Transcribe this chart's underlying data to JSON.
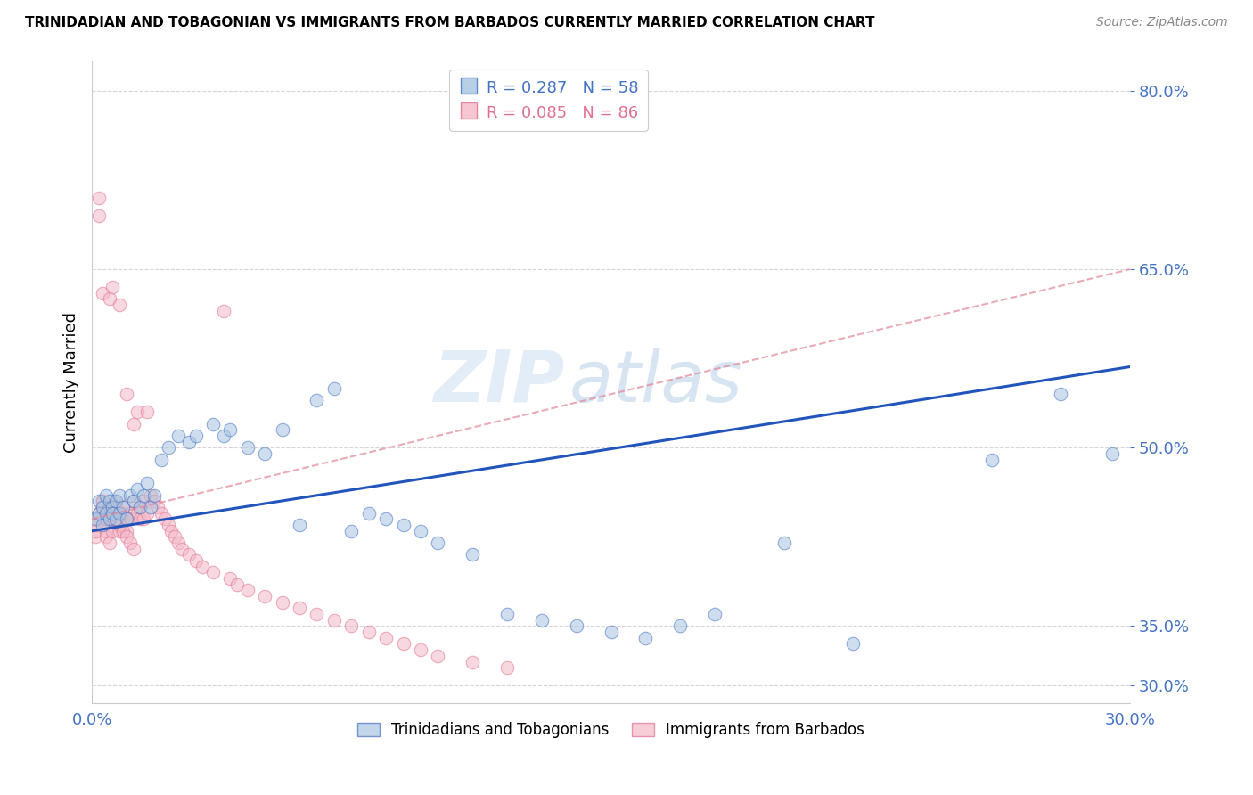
{
  "title": "TRINIDADIAN AND TOBAGONIAN VS IMMIGRANTS FROM BARBADOS CURRENTLY MARRIED CORRELATION CHART",
  "source": "Source: ZipAtlas.com",
  "xlabel": "",
  "ylabel": "Currently Married",
  "watermark_zip": "ZIP",
  "watermark_atlas": "atlas",
  "legend_blue_r": "R = 0.287",
  "legend_blue_n": "N = 58",
  "legend_pink_r": "R = 0.085",
  "legend_pink_n": "N = 86",
  "legend_blue_label": "Trinidadians and Tobagonians",
  "legend_pink_label": "Immigrants from Barbados",
  "xlim": [
    0.0,
    0.3
  ],
  "ylim": [
    0.285,
    0.825
  ],
  "yticks": [
    0.3,
    0.35,
    0.5,
    0.65,
    0.8
  ],
  "xticks": [
    0.0,
    0.05,
    0.1,
    0.15,
    0.2,
    0.25,
    0.3
  ],
  "ytick_labels": [
    "30.0%",
    "35.0%",
    "50.0%",
    "65.0%",
    "80.0%"
  ],
  "blue_fill": "#a8c4e0",
  "pink_fill": "#f4b8c8",
  "blue_edge": "#4472c4",
  "pink_edge": "#e07090",
  "blue_line_color": "#2255bb",
  "pink_line_color": "#e08898",
  "background_color": "#ffffff",
  "blue_trend_x0": 0.0,
  "blue_trend_y0": 0.43,
  "blue_trend_x1": 0.3,
  "blue_trend_y1": 0.568,
  "pink_trend_x0": 0.0,
  "pink_trend_y0": 0.44,
  "pink_trend_x1": 0.3,
  "pink_trend_y1": 0.65,
  "blue_dots_x": [
    0.001,
    0.002,
    0.002,
    0.003,
    0.003,
    0.004,
    0.004,
    0.005,
    0.005,
    0.006,
    0.006,
    0.007,
    0.007,
    0.008,
    0.008,
    0.009,
    0.01,
    0.011,
    0.012,
    0.013,
    0.014,
    0.015,
    0.016,
    0.017,
    0.018,
    0.02,
    0.022,
    0.025,
    0.028,
    0.03,
    0.035,
    0.038,
    0.04,
    0.045,
    0.05,
    0.055,
    0.06,
    0.065,
    0.07,
    0.075,
    0.08,
    0.085,
    0.09,
    0.095,
    0.1,
    0.11,
    0.12,
    0.13,
    0.14,
    0.15,
    0.16,
    0.17,
    0.18,
    0.2,
    0.22,
    0.26,
    0.28,
    0.295
  ],
  "blue_dots_y": [
    0.44,
    0.455,
    0.445,
    0.45,
    0.435,
    0.46,
    0.445,
    0.455,
    0.44,
    0.45,
    0.445,
    0.455,
    0.44,
    0.46,
    0.445,
    0.45,
    0.44,
    0.46,
    0.455,
    0.465,
    0.45,
    0.46,
    0.47,
    0.45,
    0.46,
    0.49,
    0.5,
    0.51,
    0.505,
    0.51,
    0.52,
    0.51,
    0.515,
    0.5,
    0.495,
    0.515,
    0.435,
    0.54,
    0.55,
    0.43,
    0.445,
    0.44,
    0.435,
    0.43,
    0.42,
    0.41,
    0.36,
    0.355,
    0.35,
    0.345,
    0.34,
    0.35,
    0.36,
    0.42,
    0.335,
    0.49,
    0.545,
    0.495
  ],
  "pink_dots_x": [
    0.001,
    0.001,
    0.002,
    0.002,
    0.002,
    0.003,
    0.003,
    0.003,
    0.003,
    0.004,
    0.004,
    0.004,
    0.005,
    0.005,
    0.005,
    0.005,
    0.006,
    0.006,
    0.006,
    0.006,
    0.007,
    0.007,
    0.007,
    0.008,
    0.008,
    0.008,
    0.009,
    0.009,
    0.01,
    0.01,
    0.01,
    0.011,
    0.011,
    0.012,
    0.012,
    0.013,
    0.013,
    0.014,
    0.014,
    0.015,
    0.015,
    0.016,
    0.016,
    0.017,
    0.018,
    0.019,
    0.02,
    0.021,
    0.022,
    0.023,
    0.024,
    0.025,
    0.026,
    0.028,
    0.03,
    0.032,
    0.035,
    0.038,
    0.04,
    0.042,
    0.045,
    0.05,
    0.055,
    0.06,
    0.065,
    0.07,
    0.075,
    0.08,
    0.085,
    0.09,
    0.095,
    0.1,
    0.11,
    0.12,
    0.001,
    0.002,
    0.003,
    0.004,
    0.005,
    0.006,
    0.007,
    0.008,
    0.009,
    0.01,
    0.011,
    0.012
  ],
  "pink_dots_y": [
    0.425,
    0.43,
    0.695,
    0.71,
    0.44,
    0.45,
    0.455,
    0.63,
    0.445,
    0.44,
    0.43,
    0.425,
    0.42,
    0.45,
    0.44,
    0.625,
    0.445,
    0.44,
    0.43,
    0.635,
    0.45,
    0.455,
    0.445,
    0.44,
    0.62,
    0.43,
    0.45,
    0.445,
    0.44,
    0.545,
    0.43,
    0.445,
    0.44,
    0.455,
    0.52,
    0.445,
    0.53,
    0.45,
    0.44,
    0.455,
    0.44,
    0.53,
    0.445,
    0.46,
    0.455,
    0.45,
    0.445,
    0.44,
    0.435,
    0.43,
    0.425,
    0.42,
    0.415,
    0.41,
    0.405,
    0.4,
    0.395,
    0.615,
    0.39,
    0.385,
    0.38,
    0.375,
    0.37,
    0.365,
    0.36,
    0.355,
    0.35,
    0.345,
    0.34,
    0.335,
    0.33,
    0.325,
    0.32,
    0.315,
    0.435,
    0.445,
    0.455,
    0.44,
    0.45,
    0.445,
    0.44,
    0.435,
    0.43,
    0.425,
    0.42,
    0.415
  ]
}
